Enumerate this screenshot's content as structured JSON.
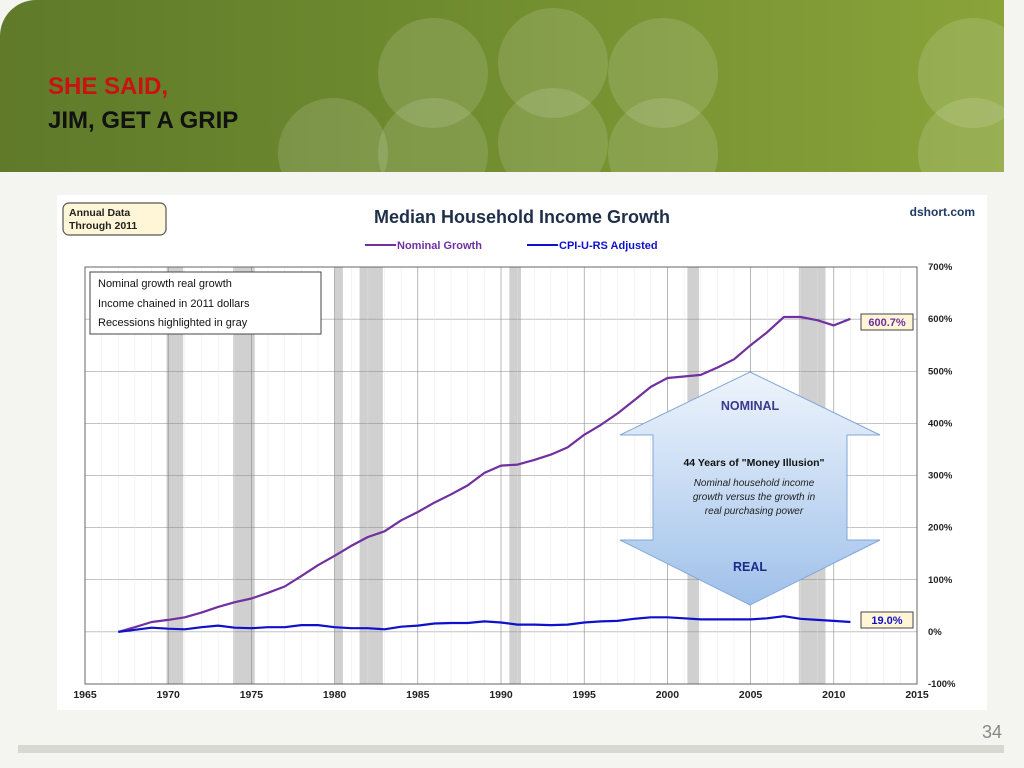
{
  "slide": {
    "title_line1": "SHE SAID,",
    "title_line2": "JIM, GET A GRIP",
    "page_number": "34"
  },
  "chart_data": {
    "type": "line",
    "title": "Median Household Income Growth",
    "source": "dshort.com",
    "badge_line1": "Annual Data",
    "badge_line2": "Through 2011",
    "legend": [
      "Nominal Growth",
      "CPI-U-RS Adjusted"
    ],
    "notes": [
      "Nominal growth real growth",
      "Income chained in 2011 dollars",
      "Recessions highlighted in gray"
    ],
    "x_ticks": [
      1965,
      1970,
      1975,
      1980,
      1985,
      1990,
      1995,
      2000,
      2005,
      2010,
      2015
    ],
    "y_ticks": [
      "700%",
      "600%",
      "500%",
      "400%",
      "300%",
      "200%",
      "100%",
      "0%",
      "-100%"
    ],
    "xlim": [
      1965,
      2015
    ],
    "ylim": [
      -100,
      700
    ],
    "recessions": [
      [
        1969.9,
        1970.9
      ],
      [
        1973.9,
        1975.2
      ],
      [
        1980.0,
        1980.5
      ],
      [
        1981.5,
        1982.9
      ],
      [
        1990.5,
        1991.2
      ],
      [
        2001.2,
        2001.9
      ],
      [
        2007.9,
        2009.5
      ]
    ],
    "series": [
      {
        "name": "Nominal Growth",
        "color": "#7030a0",
        "x": [
          1967,
          1968,
          1969,
          1970,
          1971,
          1972,
          1973,
          1974,
          1975,
          1976,
          1977,
          1978,
          1979,
          1980,
          1981,
          1982,
          1983,
          1984,
          1985,
          1986,
          1987,
          1988,
          1989,
          1990,
          1991,
          1992,
          1993,
          1994,
          1995,
          1996,
          1997,
          1998,
          1999,
          2000,
          2001,
          2002,
          2003,
          2004,
          2005,
          2006,
          2007,
          2008,
          2009,
          2010,
          2011
        ],
        "values": [
          0,
          9,
          19,
          23,
          28,
          37,
          48,
          57,
          64,
          75,
          87,
          107,
          128,
          146,
          165,
          182,
          193,
          214,
          230,
          248,
          264,
          281,
          305,
          319,
          321,
          330,
          340,
          354,
          378,
          397,
          419,
          444,
          470,
          487,
          490,
          493,
          507,
          523,
          550,
          575,
          604,
          604,
          598,
          588,
          600.7
        ]
      },
      {
        "name": "CPI-U-RS Adjusted",
        "color": "#1010cc",
        "x": [
          1967,
          1968,
          1969,
          1970,
          1971,
          1972,
          1973,
          1974,
          1975,
          1976,
          1977,
          1978,
          1979,
          1980,
          1981,
          1982,
          1983,
          1984,
          1985,
          1986,
          1987,
          1988,
          1989,
          1990,
          1991,
          1992,
          1993,
          1994,
          1995,
          1996,
          1997,
          1998,
          1999,
          2000,
          2001,
          2002,
          2003,
          2004,
          2005,
          2006,
          2007,
          2008,
          2009,
          2010,
          2011
        ],
        "values": [
          0,
          4,
          8,
          6,
          5,
          9,
          12,
          8,
          7,
          9,
          9,
          13,
          13,
          9,
          7,
          7,
          5,
          10,
          12,
          16,
          17,
          17,
          20,
          18,
          14,
          14,
          13,
          14,
          18,
          20,
          21,
          25,
          28,
          28,
          26,
          24,
          24,
          24,
          24,
          26,
          30,
          25,
          23,
          21,
          19.0
        ]
      }
    ],
    "end_labels": [
      "600.7%",
      "19.0%"
    ],
    "arrow": {
      "top_label": "NOMINAL",
      "bottom_label": "REAL",
      "heading": "44 Years of \"Money Illusion\"",
      "text_line1": "Nominal household income",
      "text_line2": "growth versus the growth in",
      "text_line3": "real purchasing power"
    }
  }
}
